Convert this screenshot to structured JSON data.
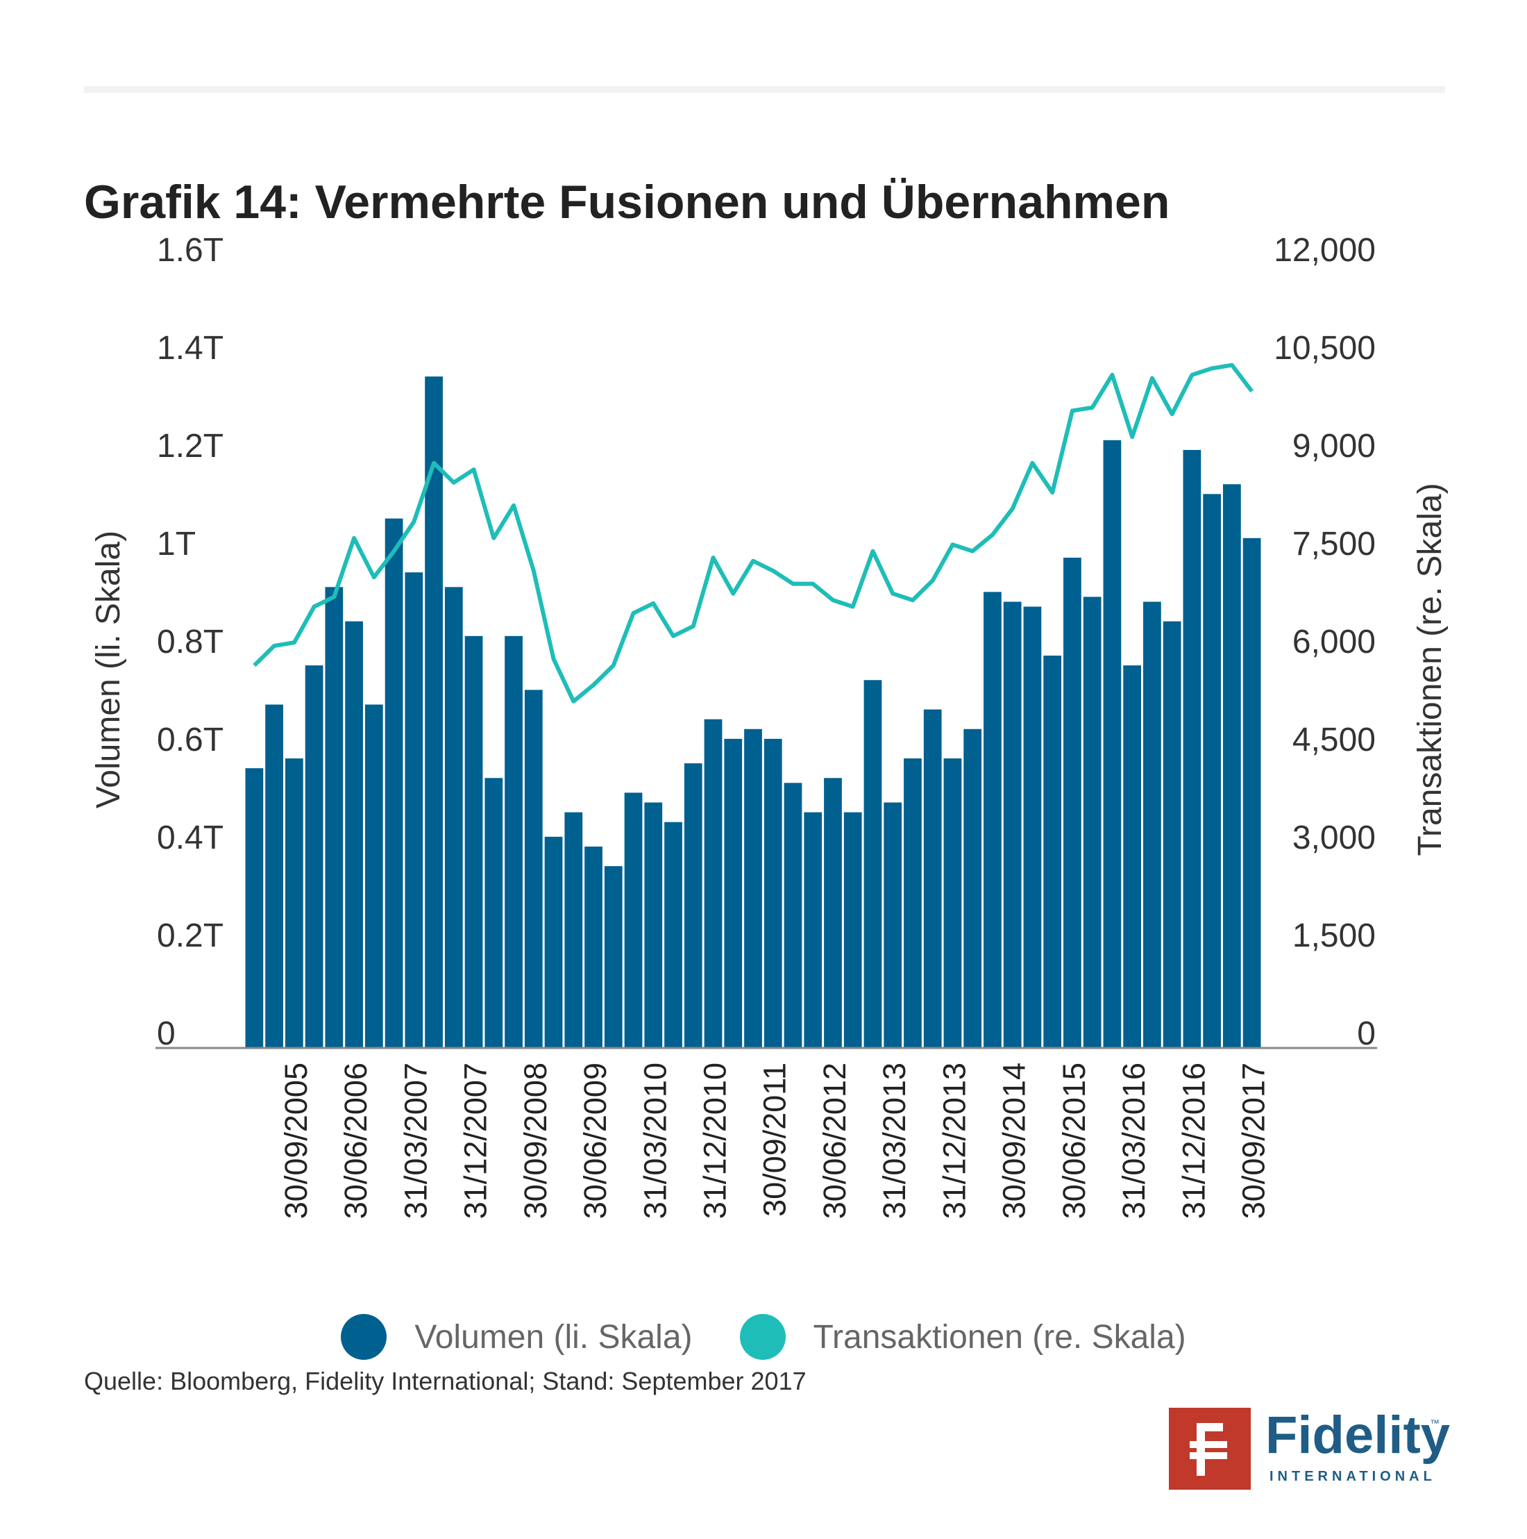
{
  "title": "Grafik 14: Vermehrte Fusionen und Übernahmen",
  "legend": {
    "volume": "Volumen (li. Skala)",
    "transactions": "Transaktionen (re. Skala)"
  },
  "source": "Quelle: Bloomberg, Fidelity International; Stand: September 2017",
  "logo": {
    "name": "Fidelity",
    "sub": "INTERNATIONAL",
    "tm": "™"
  },
  "colors": {
    "bar": "#00608f",
    "line": "#1ebdb8",
    "axis": "#888888",
    "text": "#333333",
    "logo_red": "#c0392b",
    "logo_blue": "#1f5d86"
  },
  "chart_data": {
    "type": "bar",
    "ylabel": "Volumen (li. Skala)",
    "y2label": "Transaktionen (re. Skala)",
    "ylim": [
      0,
      1.6
    ],
    "y2lim": [
      0,
      12000
    ],
    "yticks": [
      "0",
      "0.2T",
      "0.4T",
      "0.6T",
      "0.8T",
      "1T",
      "1.2T",
      "1.4T",
      "1.6T"
    ],
    "y2ticks": [
      "0",
      "1,500",
      "3,000",
      "4,500",
      "6,000",
      "7,500",
      "9,000",
      "10,500",
      "12,000"
    ],
    "xtick_labels": [
      {
        "index": 2,
        "label": "30/09/2005"
      },
      {
        "index": 5,
        "label": "30/06/2006"
      },
      {
        "index": 8,
        "label": "31/03/2007"
      },
      {
        "index": 11,
        "label": "31/12/2007"
      },
      {
        "index": 14,
        "label": "30/09/2008"
      },
      {
        "index": 17,
        "label": "30/06/2009"
      },
      {
        "index": 20,
        "label": "31/03/2010"
      },
      {
        "index": 23,
        "label": "31/12/2010"
      },
      {
        "index": 26,
        "label": "30/09/2011"
      },
      {
        "index": 29,
        "label": "30/06/2012"
      },
      {
        "index": 32,
        "label": "31/03/2013"
      },
      {
        "index": 35,
        "label": "31/12/2013"
      },
      {
        "index": 38,
        "label": "30/09/2014"
      },
      {
        "index": 41,
        "label": "30/06/2015"
      },
      {
        "index": 44,
        "label": "31/03/2016"
      },
      {
        "index": 47,
        "label": "31/12/2016"
      },
      {
        "index": 50,
        "label": "30/09/2017"
      }
    ],
    "series": [
      {
        "name": "Volumen (li. Skala)",
        "type": "bar",
        "axis": "left",
        "values": [
          0.57,
          0.7,
          0.59,
          0.78,
          0.94,
          0.87,
          0.7,
          1.08,
          0.97,
          1.37,
          0.94,
          0.84,
          0.55,
          0.84,
          0.73,
          0.43,
          0.48,
          0.41,
          0.37,
          0.52,
          0.5,
          0.46,
          0.58,
          0.67,
          0.63,
          0.65,
          0.63,
          0.54,
          0.48,
          0.55,
          0.48,
          0.75,
          0.5,
          0.59,
          0.69,
          0.59,
          0.65,
          0.93,
          0.91,
          0.9,
          0.8,
          1.0,
          0.92,
          1.24,
          0.78,
          0.91,
          0.87,
          1.22,
          1.13,
          1.15,
          1.04
        ]
      },
      {
        "name": "Transaktionen (re. Skala)",
        "type": "line",
        "axis": "right",
        "values": [
          5850,
          6150,
          6200,
          6750,
          6900,
          7800,
          7200,
          7600,
          8050,
          8950,
          8650,
          8850,
          7800,
          8300,
          7300,
          5950,
          5300,
          5550,
          5850,
          6650,
          6800,
          6300,
          6450,
          7500,
          6950,
          7450,
          7300,
          7100,
          7100,
          6850,
          6750,
          7600,
          6950,
          6850,
          7150,
          7700,
          7600,
          7850,
          8250,
          8950,
          8500,
          9750,
          9800,
          10300,
          9350,
          10250,
          9700,
          10300,
          10400,
          10450,
          10050
        ]
      }
    ],
    "grid": false,
    "legend_position": "bottom"
  }
}
